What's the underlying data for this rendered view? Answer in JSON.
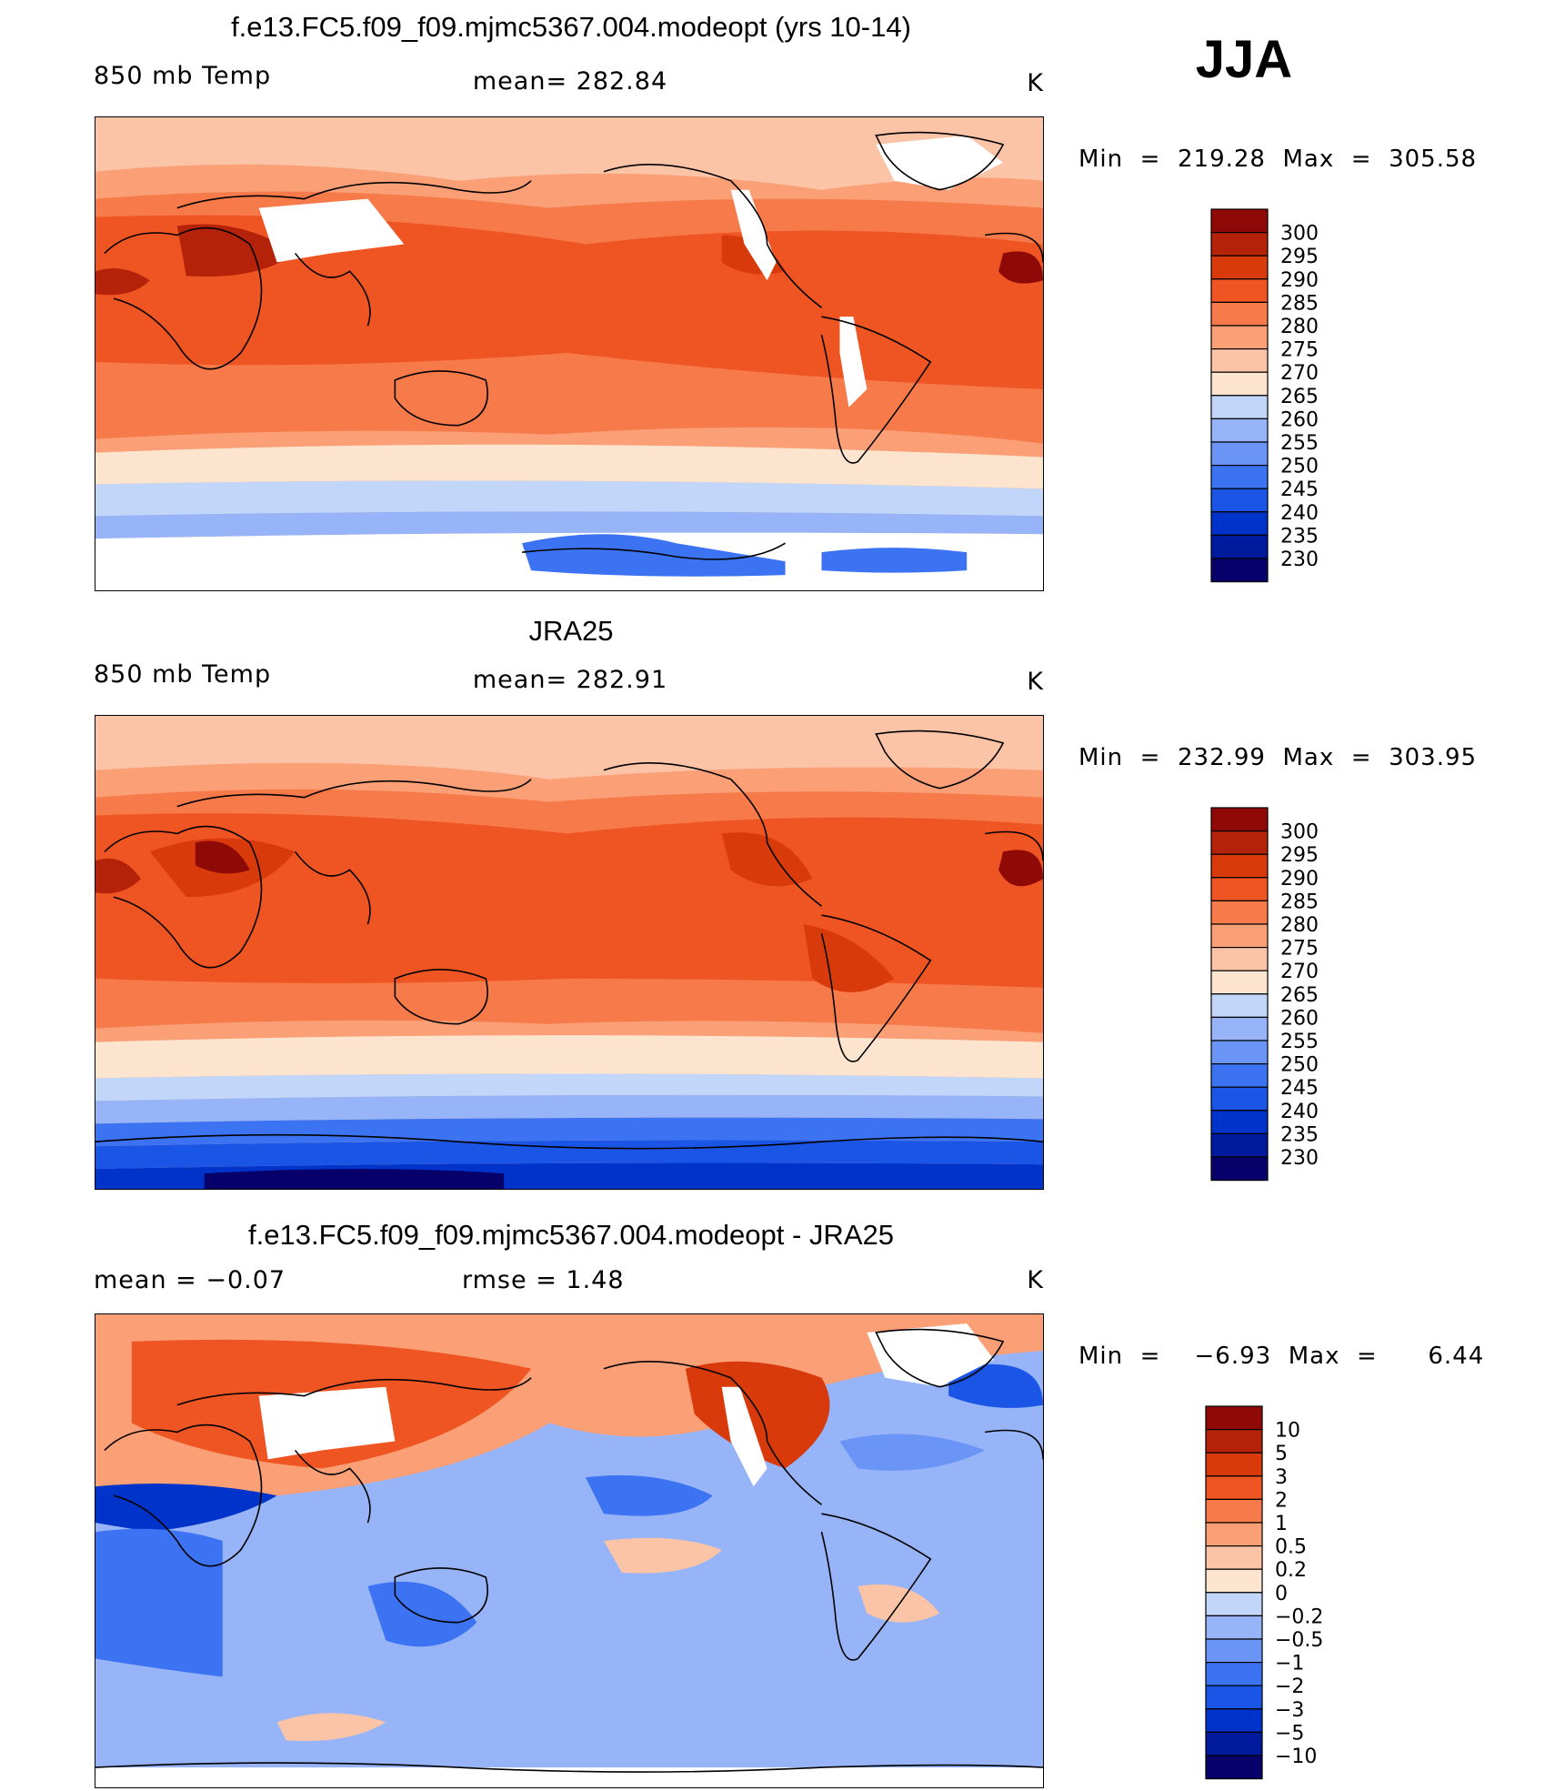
{
  "season": "JJA",
  "colors": {
    "abs": [
      "#08006a",
      "#001a9e",
      "#0033c9",
      "#1a55e6",
      "#3c73f2",
      "#6a94f5",
      "#96b4f7",
      "#c2d6fa",
      "#fde4cf",
      "#fcc4a6",
      "#fa9f76",
      "#f67a4a",
      "#ef5522",
      "#d83a0c",
      "#b5220a",
      "#8f0a06"
    ],
    "diff": [
      "#08006a",
      "#001a9e",
      "#0033c9",
      "#1a55e6",
      "#3c73f2",
      "#6a94f5",
      "#96b4f7",
      "#c2d6fa",
      "#fde4cf",
      "#fcc4a6",
      "#fa9f76",
      "#f67a4a",
      "#ef5522",
      "#d83a0c",
      "#b5220a",
      "#8f0a06"
    ]
  },
  "panels": [
    {
      "title": "f.e13.FC5.f09_f09.mjmc5367.004.modeopt (yrs 10-14)",
      "left_label": "850 mb Temp",
      "center_label": "mean= 282.84",
      "units": "K",
      "minmax": "Min  =  219.28  Max  =  305.58",
      "colorbar_labels": [
        "300",
        "295",
        "290",
        "285",
        "280",
        "275",
        "270",
        "265",
        "260",
        "255",
        "250",
        "245",
        "240",
        "235",
        "230"
      ]
    },
    {
      "title": "JRA25",
      "left_label": "850 mb Temp",
      "center_label": "mean= 282.91",
      "units": "K",
      "minmax": "Min  =  232.99  Max  =  303.95",
      "colorbar_labels": [
        "300",
        "295",
        "290",
        "285",
        "280",
        "275",
        "270",
        "265",
        "260",
        "255",
        "250",
        "245",
        "240",
        "235",
        "230"
      ]
    },
    {
      "title": "f.e13.FC5.f09_f09.mjmc5367.004.modeopt - JRA25",
      "left_label": "mean  =    −0.07",
      "center_label": "rmse  =     1.48",
      "units": "K",
      "minmax": "Min  =    −6.93  Max  =      6.44",
      "colorbar_labels": [
        "10",
        "5",
        "3",
        "2",
        "1",
        "0.5",
        "0.2",
        "0",
        "−0.2",
        "−0.5",
        "−1",
        "−2",
        "−3",
        "−5",
        "−10"
      ]
    }
  ]
}
